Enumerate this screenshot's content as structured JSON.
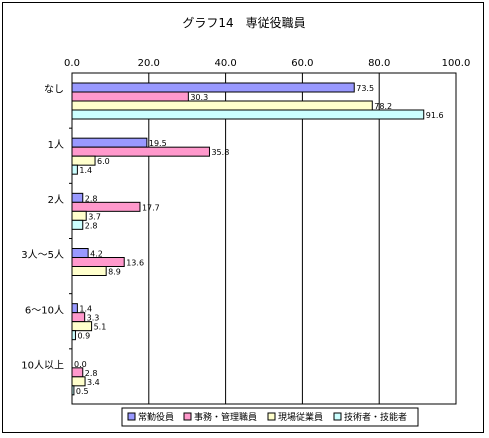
{
  "chart_data": {
    "type": "bar",
    "orientation": "horizontal",
    "title": "グラフ14　専従役職員",
    "categories": [
      "なし",
      "1人",
      "2人",
      "3人～5人",
      "6～10人",
      "10人以上"
    ],
    "series": [
      {
        "name": "常勤役員",
        "color": "#9999ff",
        "values": [
          73.5,
          19.5,
          2.8,
          4.2,
          1.4,
          0.0
        ],
        "labels": [
          "73.5",
          "19.5",
          "2.8",
          "4.2",
          "1.4",
          "0.0"
        ]
      },
      {
        "name": "事務・管理職員",
        "color": "#ff99cc",
        "values": [
          30.3,
          35.8,
          17.7,
          13.6,
          3.3,
          2.8
        ],
        "labels": [
          "30.3",
          "35.8",
          "17.7",
          "13.6",
          "3.3",
          "2.8"
        ]
      },
      {
        "name": "現場従業員",
        "color": "#ffffcc",
        "values": [
          78.2,
          6.0,
          3.7,
          8.9,
          5.1,
          3.4
        ],
        "labels": [
          "78.2",
          "6.0",
          "3.7",
          "8.9",
          "5.1",
          "3.4"
        ]
      },
      {
        "name": "技術者・技能者",
        "color": "#ccffff",
        "values": [
          91.6,
          1.4,
          2.8,
          null,
          0.9,
          0.5
        ],
        "labels": [
          "91.6",
          "1.4",
          "2.8",
          "",
          "0.9",
          "0.5"
        ]
      }
    ],
    "xlim": [
      0,
      100
    ],
    "xticks": [
      "0.0",
      "20.0",
      "40.0",
      "60.0",
      "80.0",
      "100.0"
    ],
    "grid": true,
    "legend": "bottom"
  }
}
